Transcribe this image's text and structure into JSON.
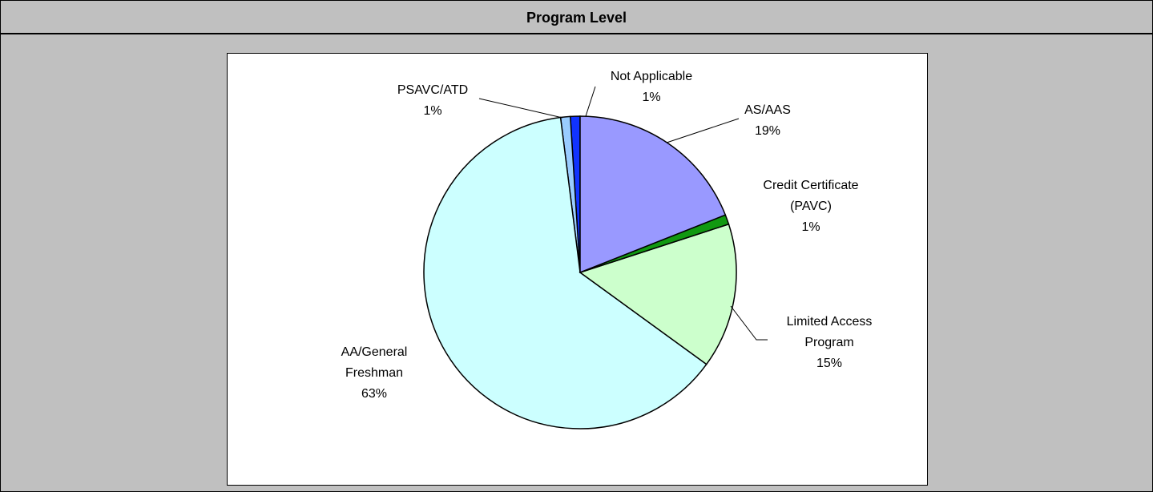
{
  "chart_data": {
    "type": "pie",
    "title": "Program Level",
    "categories": [
      "AS/AAS",
      "Credit Certificate (PAVC)",
      "Limited Access Program",
      "AA/General Freshman",
      "PSAVC/ATD",
      "Not Applicable"
    ],
    "values": [
      19,
      1,
      15,
      63,
      1,
      1
    ],
    "value_labels": [
      "19%",
      "1%",
      "15%",
      "63%",
      "1%",
      "1%"
    ],
    "colors": [
      "#9999ff",
      "#119911",
      "#ccffcc",
      "#ccffff",
      "#99ccff",
      "#1133ff"
    ]
  }
}
